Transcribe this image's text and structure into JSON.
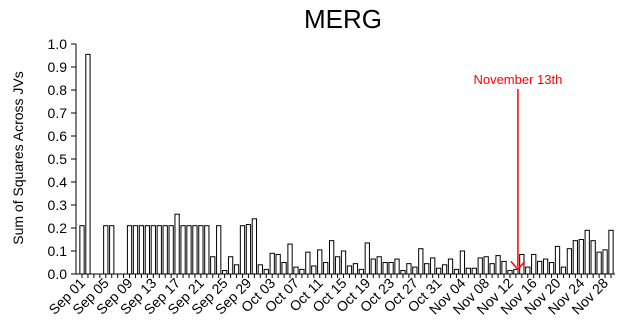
{
  "chart_data": {
    "type": "bar",
    "title": "MERG",
    "xlabel": "",
    "ylabel": "Sum of Squares Across JVs",
    "ylim": [
      0,
      1.0
    ],
    "yticks": [
      "0.0",
      "0.1",
      "0.2",
      "0.3",
      "0.4",
      "0.5",
      "0.6",
      "0.7",
      "0.8",
      "0.9",
      "1.0"
    ],
    "grid": false,
    "legend": "none",
    "bar_color": "#ffffff",
    "bar_edge_color": "#000000",
    "annotation_color": "#ff0000",
    "categories": [
      "Sep 01",
      "Sep 02",
      "Sep 03",
      "Sep 04",
      "Sep 05",
      "Sep 06",
      "Sep 07",
      "Sep 08",
      "Sep 09",
      "Sep 10",
      "Sep 11",
      "Sep 12",
      "Sep 13",
      "Sep 14",
      "Sep 15",
      "Sep 16",
      "Sep 17",
      "Sep 18",
      "Sep 19",
      "Sep 20",
      "Sep 21",
      "Sep 22",
      "Sep 23",
      "Sep 24",
      "Sep 25",
      "Sep 26",
      "Sep 27",
      "Sep 28",
      "Sep 29",
      "Sep 30",
      "Oct 01",
      "Oct 02",
      "Oct 03",
      "Oct 04",
      "Oct 05",
      "Oct 06",
      "Oct 07",
      "Oct 08",
      "Oct 09",
      "Oct 10",
      "Oct 11",
      "Oct 12",
      "Oct 13",
      "Oct 14",
      "Oct 15",
      "Oct 16",
      "Oct 17",
      "Oct 18",
      "Oct 19",
      "Oct 20",
      "Oct 21",
      "Oct 22",
      "Oct 23",
      "Oct 24",
      "Oct 25",
      "Oct 26",
      "Oct 27",
      "Oct 28",
      "Oct 29",
      "Oct 30",
      "Oct 31",
      "Nov 01",
      "Nov 02",
      "Nov 03",
      "Nov 04",
      "Nov 05",
      "Nov 06",
      "Nov 07",
      "Nov 08",
      "Nov 09",
      "Nov 10",
      "Nov 11",
      "Nov 12",
      "Nov 13",
      "Nov 14",
      "Nov 15",
      "Nov 16",
      "Nov 17",
      "Nov 18",
      "Nov 19",
      "Nov 20",
      "Nov 21",
      "Nov 22",
      "Nov 23",
      "Nov 24",
      "Nov 25",
      "Nov 26",
      "Nov 27",
      "Nov 28",
      "Nov 29"
    ],
    "tick_labels": [
      "Sep 01",
      "Sep 05",
      "Sep 09",
      "Sep 13",
      "Sep 17",
      "Sep 21",
      "Sep 25",
      "Sep 29",
      "Oct 03",
      "Oct 07",
      "Oct 11",
      "Oct 15",
      "Oct 19",
      "Oct 23",
      "Oct 27",
      "Oct 31",
      "Nov 04",
      "Nov 08",
      "Nov 12",
      "Nov 16",
      "Nov 20",
      "Nov 24",
      "Nov 28"
    ],
    "values": [
      0.21,
      0.955,
      0,
      0,
      0.21,
      0.21,
      0,
      0,
      0.21,
      0.21,
      0.21,
      0.21,
      0.21,
      0.21,
      0.21,
      0.21,
      0.26,
      0.21,
      0.21,
      0.21,
      0.21,
      0.21,
      0.075,
      0.21,
      0.015,
      0.075,
      0.04,
      0.21,
      0.215,
      0.24,
      0.04,
      0.02,
      0.09,
      0.085,
      0.05,
      0.13,
      0.03,
      0.02,
      0.095,
      0.035,
      0.105,
      0.05,
      0.145,
      0.075,
      0.1,
      0.035,
      0.045,
      0.02,
      0.135,
      0.065,
      0.075,
      0.05,
      0.05,
      0.065,
      0.015,
      0.045,
      0.03,
      0.11,
      0.045,
      0.07,
      0.025,
      0.04,
      0.065,
      0.02,
      0.1,
      0.025,
      0.025,
      0.07,
      0.075,
      0.045,
      0.08,
      0.055,
      0.015,
      0.02,
      0.085,
      0.03,
      0.085,
      0.055,
      0.065,
      0.05,
      0.12,
      0.03,
      0.11,
      0.145,
      0.15,
      0.19,
      0.145,
      0.095,
      0.105,
      0.19
    ],
    "annotations": [
      {
        "text": "November 13th",
        "category": "Nov 13",
        "arrow": true
      }
    ]
  }
}
